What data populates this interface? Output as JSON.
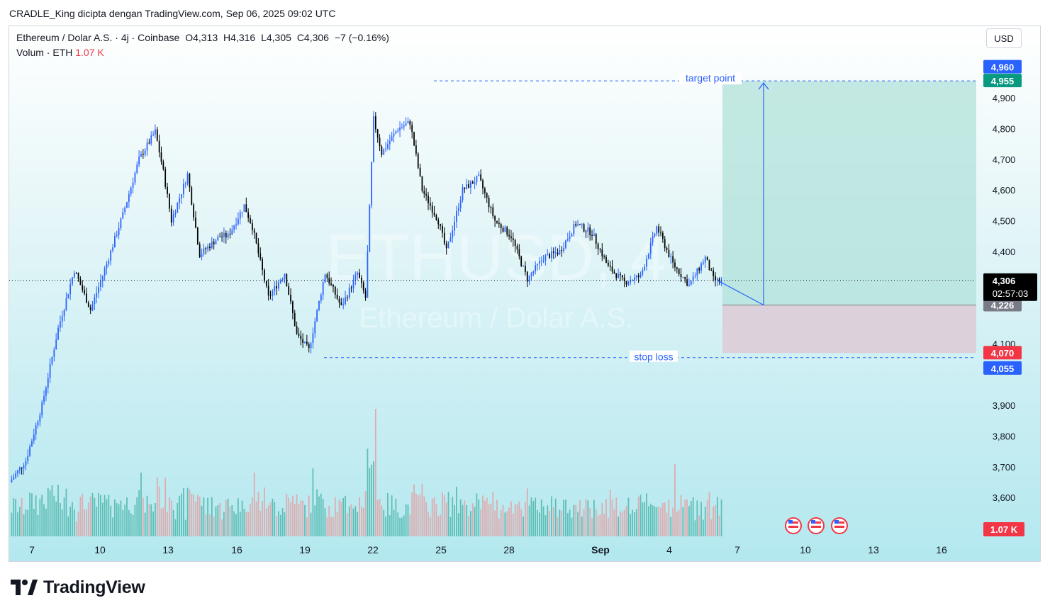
{
  "caption": "CRADLE_King dicipta dengan TradingView.com, Sep 06, 2025 09:02 UTC",
  "header": {
    "symbol": "Ethereum / Dolar A.S. · 4j · Coinbase",
    "open": "O4,313",
    "high": "H4,316",
    "low": "L4,305",
    "close": "C4,306",
    "change": "−7 (−0.16%)",
    "volume_label": "Volum · ETH",
    "volume_value": "1.07 K"
  },
  "currency_button": "USD",
  "watermark": {
    "ticker": "ETHUSD, 4",
    "name": "Ethereum / Dolar A.S."
  },
  "brand": "TradingView",
  "colors": {
    "up": "#2962ff",
    "down": "#000000",
    "vol_up": "#4db6ac",
    "vol_down": "#e5a0a3",
    "target_zone": "#b2e2da",
    "stop_zone": "#dcd0da",
    "accent": "#2962ff"
  },
  "chart_data": {
    "type": "candlestick",
    "title": "Ethereum / Dolar A.S.",
    "interval": "4j",
    "exchange": "Coinbase",
    "y_ticks": [
      3600,
      3700,
      3800,
      3900,
      4100,
      4400,
      4500,
      4600,
      4700,
      4800,
      4900
    ],
    "ylim": [
      3520,
      5000
    ],
    "x_ticks": [
      "7",
      "10",
      "13",
      "16",
      "19",
      "22",
      "25",
      "28",
      "Sep",
      "4",
      "7",
      "10",
      "13",
      "16"
    ],
    "current_price": "4,306",
    "countdown": "02:57:03",
    "volume_last": "1.07 K",
    "price_labels": {
      "target_high": "4,960",
      "target": "4,955",
      "entry": "4,226",
      "stop_zone": "4,070",
      "stop": "4,055"
    },
    "annotations": {
      "target_label": "target point",
      "stop_label": "stop loss"
    },
    "levels": {
      "target": 4955,
      "entry": 4226,
      "stop_zone": 4070,
      "stop": 4055,
      "current": 4306
    },
    "price_keypoints": [
      [
        0,
        3650
      ],
      [
        8,
        3720
      ],
      [
        16,
        3900
      ],
      [
        24,
        4150
      ],
      [
        32,
        4340
      ],
      [
        40,
        4210
      ],
      [
        48,
        4360
      ],
      [
        56,
        4520
      ],
      [
        64,
        4700
      ],
      [
        72,
        4790
      ],
      [
        76,
        4660
      ],
      [
        80,
        4500
      ],
      [
        88,
        4650
      ],
      [
        94,
        4390
      ],
      [
        104,
        4450
      ],
      [
        108,
        4450
      ],
      [
        116,
        4550
      ],
      [
        120,
        4480
      ],
      [
        128,
        4250
      ],
      [
        136,
        4330
      ],
      [
        142,
        4130
      ],
      [
        148,
        4080
      ],
      [
        156,
        4330
      ],
      [
        164,
        4220
      ],
      [
        172,
        4330
      ],
      [
        176,
        4250
      ],
      [
        180,
        4830
      ],
      [
        184,
        4720
      ],
      [
        192,
        4800
      ],
      [
        198,
        4820
      ],
      [
        204,
        4600
      ],
      [
        212,
        4500
      ],
      [
        216,
        4400
      ],
      [
        224,
        4600
      ],
      [
        232,
        4640
      ],
      [
        240,
        4500
      ],
      [
        248,
        4450
      ],
      [
        256,
        4310
      ],
      [
        264,
        4380
      ],
      [
        272,
        4400
      ],
      [
        280,
        4490
      ],
      [
        288,
        4460
      ],
      [
        296,
        4350
      ],
      [
        304,
        4300
      ],
      [
        312,
        4320
      ],
      [
        320,
        4480
      ],
      [
        328,
        4360
      ],
      [
        336,
        4290
      ],
      [
        344,
        4380
      ],
      [
        348,
        4310
      ],
      [
        352,
        4300
      ]
    ],
    "volume_spikes": [
      [
        180,
        3.0
      ],
      [
        149,
        1.6
      ],
      [
        64,
        1.5
      ],
      [
        120,
        1.5
      ],
      [
        328,
        1.7
      ],
      [
        72,
        1.4
      ],
      [
        20,
        1.2
      ],
      [
        296,
        1.1
      ]
    ]
  }
}
